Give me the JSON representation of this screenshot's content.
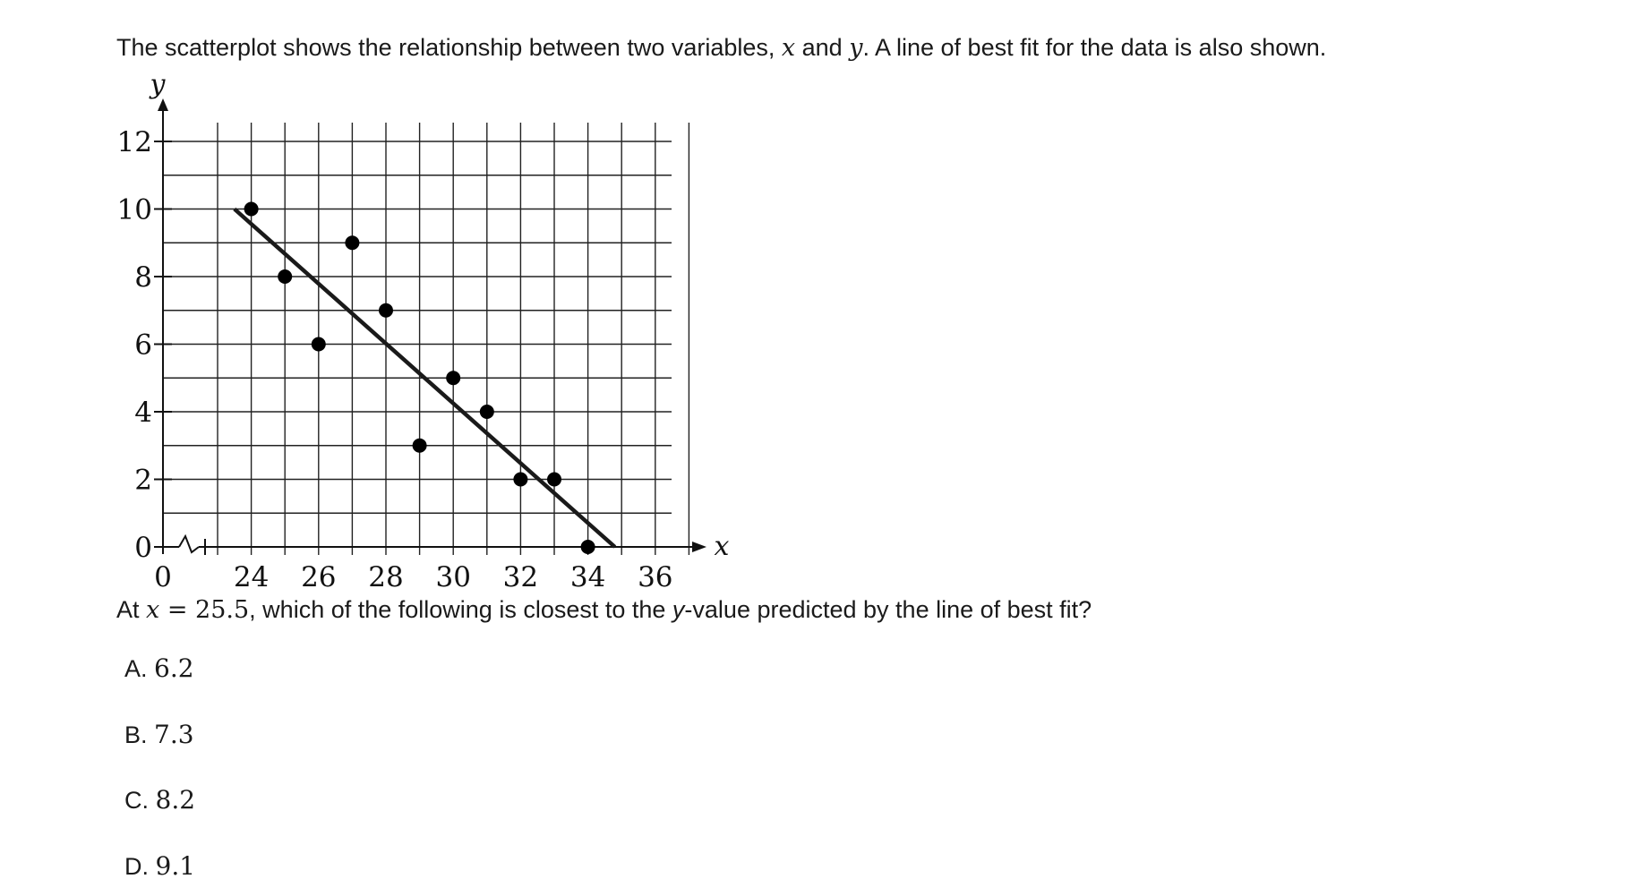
{
  "question": {
    "intro_pre": "The scatterplot shows the relationship between two variables, ",
    "var_x": "x",
    "intro_and": " and ",
    "var_y": "y",
    "intro_post": ". A line of best fit for the data is also shown.",
    "prompt_pre": "At ",
    "prompt_var": "x",
    "prompt_eq": " = ",
    "prompt_value": "25.5",
    "prompt_mid": ", which of the following is closest to the ",
    "prompt_yvar": "y",
    "prompt_post": "-value predicted by the line of best fit?"
  },
  "choices": [
    {
      "letter": "A. ",
      "value": "6.2"
    },
    {
      "letter": "B. ",
      "value": "7.3"
    },
    {
      "letter": "C. ",
      "value": "8.2"
    },
    {
      "letter": "D. ",
      "value": "9.1"
    }
  ],
  "chart_data": {
    "type": "scatter",
    "xlabel": "x",
    "ylabel": "y",
    "x_axis_break": true,
    "x_origin_label": "0",
    "xlim": [
      23,
      37
    ],
    "ylim": [
      0,
      12
    ],
    "x_ticks": [
      24,
      26,
      28,
      30,
      32,
      34,
      36
    ],
    "y_ticks": [
      0,
      2,
      4,
      6,
      8,
      10,
      12
    ],
    "grid": true,
    "points": [
      {
        "x": 24,
        "y": 10
      },
      {
        "x": 25,
        "y": 8
      },
      {
        "x": 26,
        "y": 6
      },
      {
        "x": 27,
        "y": 9
      },
      {
        "x": 28,
        "y": 7
      },
      {
        "x": 29,
        "y": 3
      },
      {
        "x": 30,
        "y": 5
      },
      {
        "x": 31,
        "y": 4
      },
      {
        "x": 32,
        "y": 2
      },
      {
        "x": 33,
        "y": 2
      },
      {
        "x": 34,
        "y": 0
      }
    ],
    "best_fit_line": {
      "x1": 23.5,
      "y1": 10,
      "x2": 34.8,
      "y2": 0
    }
  }
}
